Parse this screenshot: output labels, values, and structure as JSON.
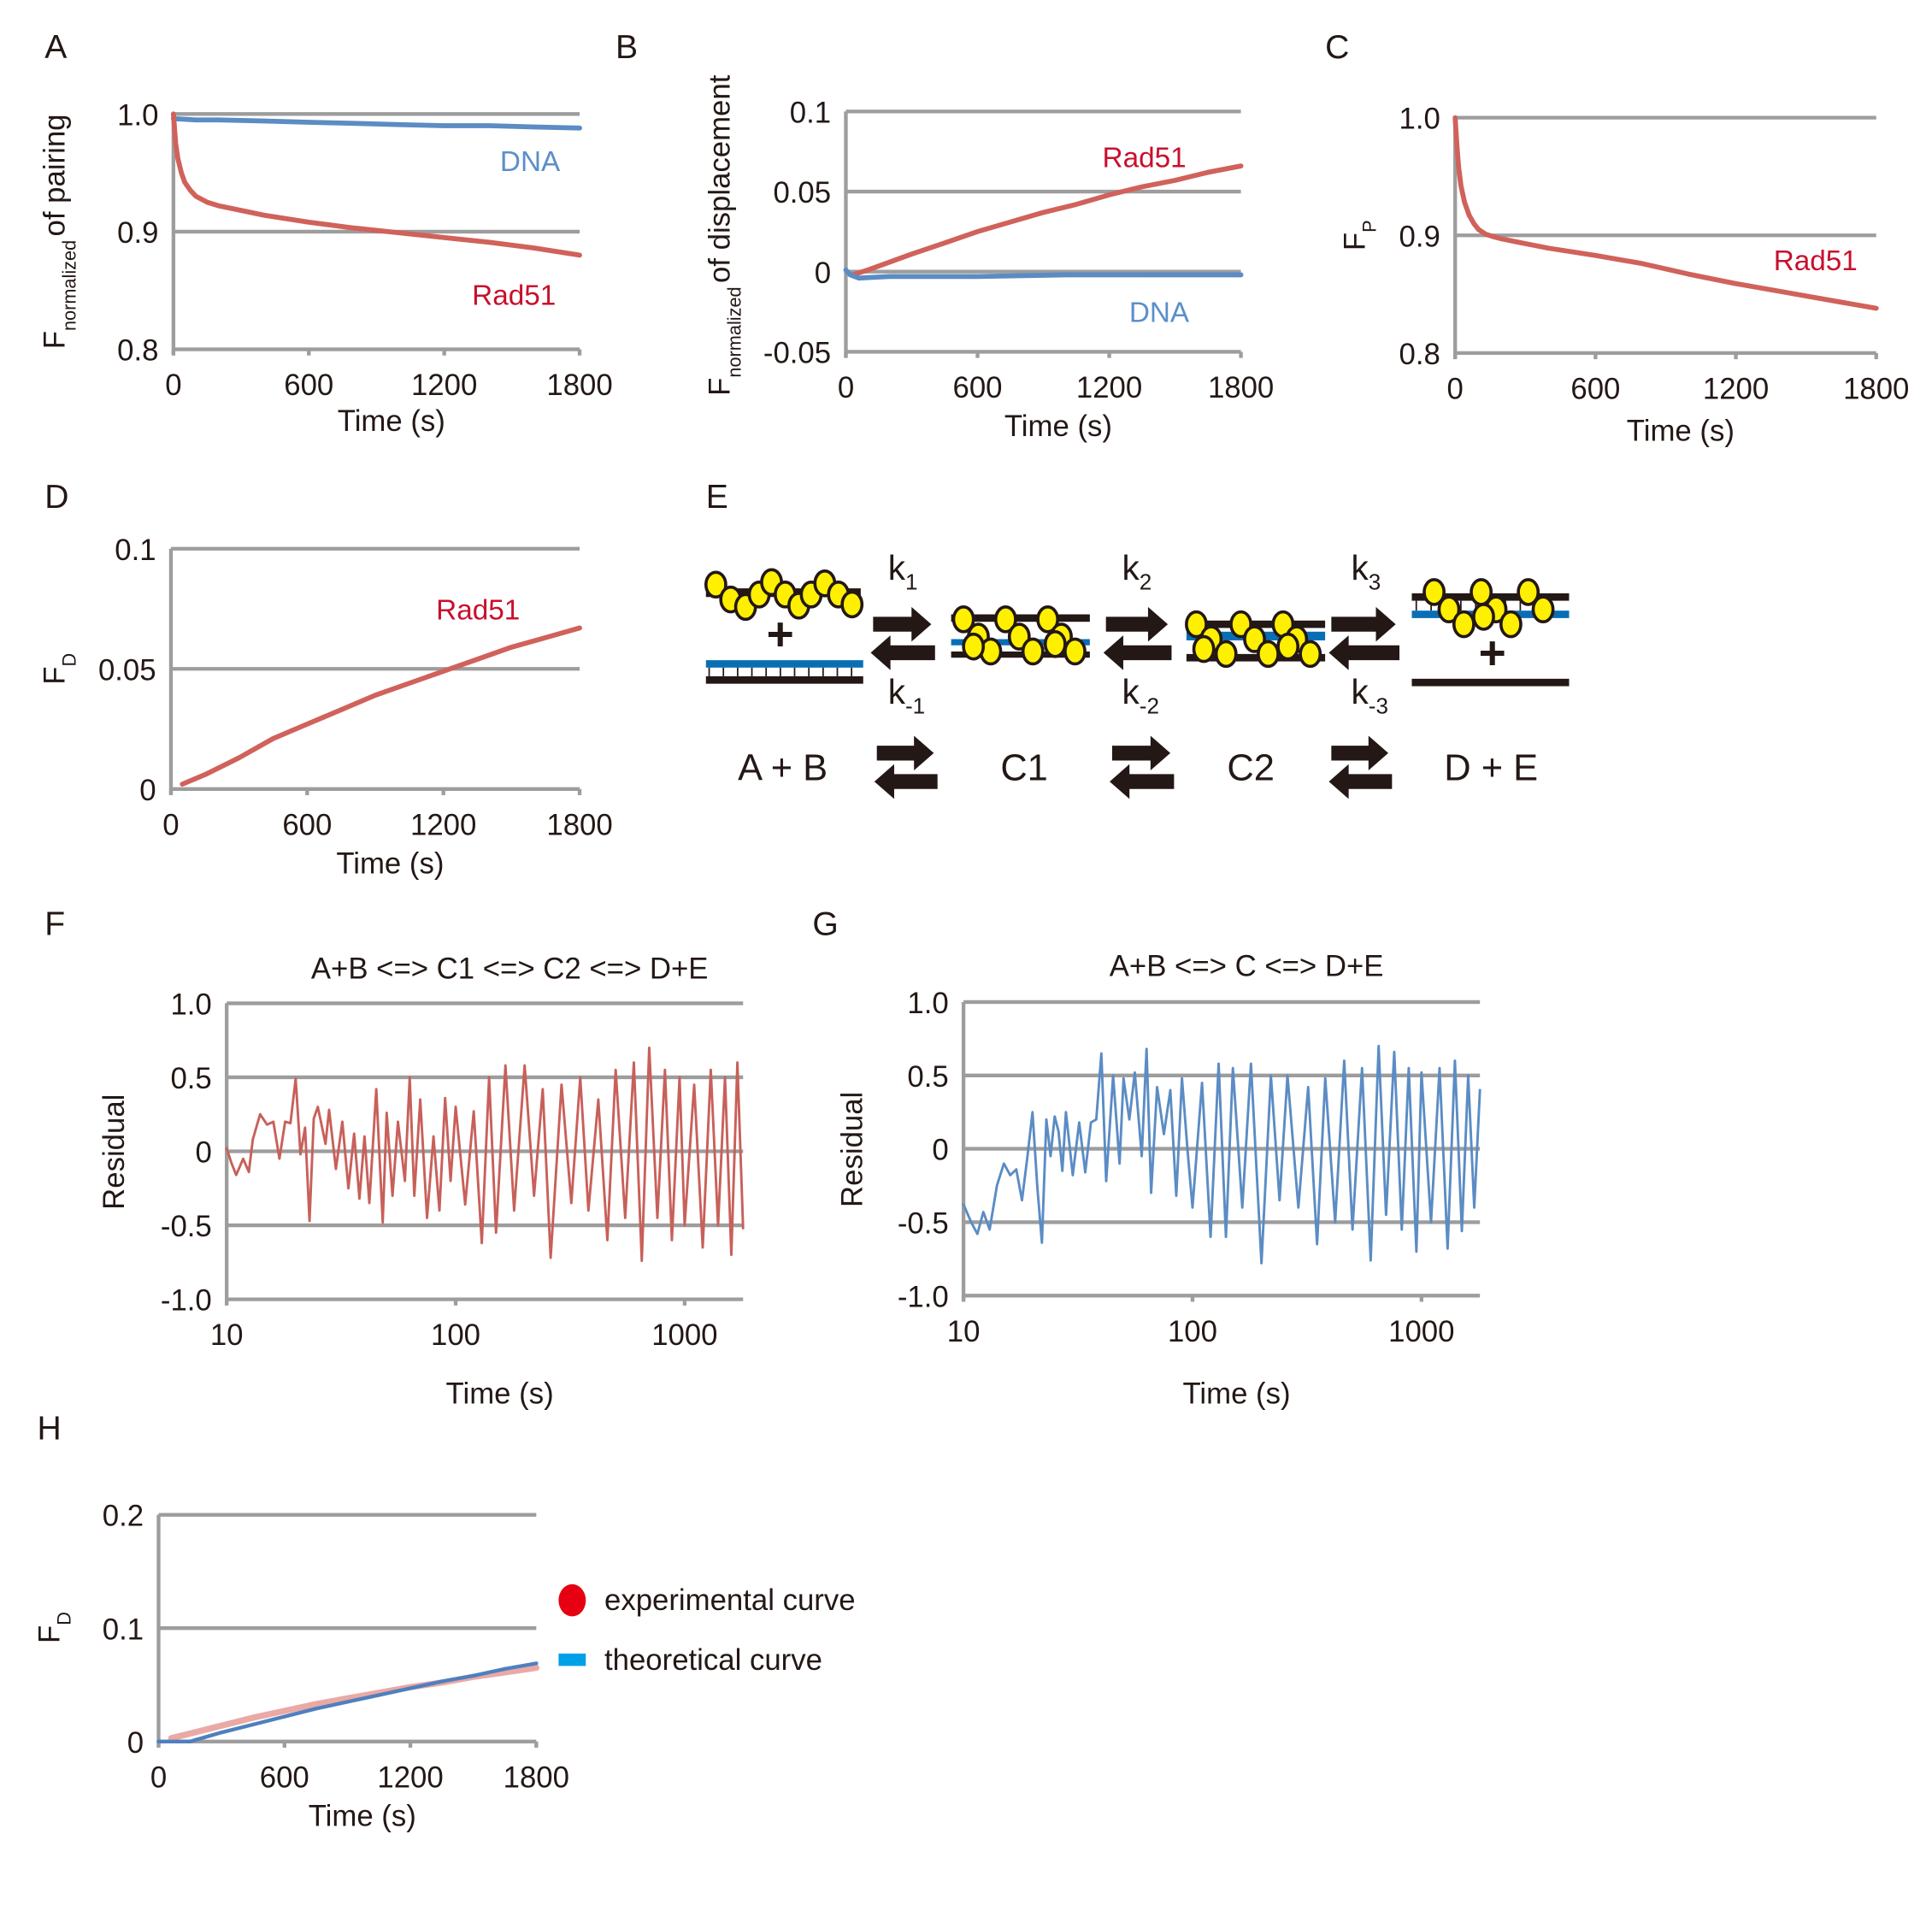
{
  "figure": {
    "panels": [
      "A",
      "B",
      "C",
      "D",
      "E",
      "F",
      "G",
      "H"
    ]
  },
  "colors": {
    "rad51_line": "#d0625b",
    "dna_line": "#5b8cc4",
    "rad51_label": "#c8102e",
    "dna_label": "#5b8fc8",
    "grid": "#9d9d9d",
    "legend_experimental": "#e60012",
    "legend_theoretical": "#00a0e9",
    "theoretical_line": "#4f7fbf",
    "experimental_line": "#eaa9a4",
    "rad51_protein": "#fff000",
    "ssdna_blue": "#0a6eb4",
    "dna_black": "#231815"
  },
  "chart_data": [
    {
      "id": "A",
      "type": "line",
      "title": "",
      "xlabel": "Time (s)",
      "ylabel_main": "F",
      "ylabel_sub": "normalized",
      "ylabel_rest": "of pairing",
      "xlim": [
        0,
        1800
      ],
      "ylim": [
        0.8,
        1.0
      ],
      "xticks": [
        "0",
        "600",
        "1200",
        "1800"
      ],
      "yticks": [
        "0.8",
        "0.9",
        "1.0"
      ],
      "grid": true,
      "series": [
        {
          "name": "DNA",
          "color": "#5b8cc4",
          "x": [
            0,
            100,
            200,
            400,
            600,
            800,
            1000,
            1200,
            1400,
            1600,
            1800
          ],
          "y": [
            0.996,
            0.995,
            0.995,
            0.994,
            0.993,
            0.992,
            0.991,
            0.99,
            0.99,
            0.989,
            0.988
          ]
        },
        {
          "name": "Rad51",
          "color": "#d0625b",
          "x": [
            0,
            10,
            20,
            35,
            50,
            75,
            100,
            150,
            200,
            300,
            400,
            600,
            800,
            1000,
            1200,
            1400,
            1600,
            1800
          ],
          "y": [
            1.0,
            0.975,
            0.962,
            0.95,
            0.942,
            0.935,
            0.93,
            0.925,
            0.922,
            0.918,
            0.914,
            0.908,
            0.903,
            0.899,
            0.895,
            0.891,
            0.886,
            0.88
          ]
        }
      ],
      "annotations": [
        "DNA",
        "Rad51"
      ]
    },
    {
      "id": "B",
      "type": "line",
      "xlabel": "Time (s)",
      "ylabel_main": "F",
      "ylabel_sub": "normalized",
      "ylabel_rest": "of displacement",
      "xlim": [
        0,
        1800
      ],
      "ylim": [
        -0.05,
        0.1
      ],
      "xticks": [
        "0",
        "600",
        "1200",
        "1800"
      ],
      "yticks": [
        "-0.05",
        "0",
        "0.05",
        "0.1"
      ],
      "grid": true,
      "series": [
        {
          "name": "Rad51",
          "color": "#d0625b",
          "x": [
            30,
            100,
            200,
            300,
            450,
            600,
            750,
            900,
            1050,
            1200,
            1350,
            1500,
            1650,
            1800
          ],
          "y": [
            -0.002,
            0.001,
            0.006,
            0.011,
            0.018,
            0.025,
            0.031,
            0.037,
            0.042,
            0.048,
            0.053,
            0.057,
            0.062,
            0.066
          ]
        },
        {
          "name": "DNA",
          "color": "#5b8cc4",
          "x": [
            0,
            20,
            60,
            200,
            600,
            1000,
            1400,
            1800
          ],
          "y": [
            0.001,
            -0.002,
            -0.004,
            -0.003,
            -0.003,
            -0.002,
            -0.002,
            -0.002
          ]
        }
      ],
      "annotations": [
        "Rad51",
        "DNA"
      ]
    },
    {
      "id": "C",
      "type": "line",
      "xlabel": "Time (s)",
      "ylabel_main": "F",
      "ylabel_sub": "P",
      "xlim": [
        0,
        1800
      ],
      "ylim": [
        0.8,
        1.0
      ],
      "xticks": [
        "0",
        "600",
        "1200",
        "1800"
      ],
      "yticks": [
        "0.8",
        "0.9",
        "1.0"
      ],
      "grid": true,
      "series": [
        {
          "name": "Rad51",
          "color": "#d0625b",
          "x": [
            0,
            8,
            15,
            25,
            40,
            60,
            80,
            100,
            130,
            160,
            200,
            300,
            400,
            600,
            800,
            1000,
            1200,
            1400,
            1600,
            1800
          ],
          "y": [
            1.0,
            0.975,
            0.958,
            0.942,
            0.928,
            0.917,
            0.91,
            0.905,
            0.901,
            0.899,
            0.897,
            0.893,
            0.889,
            0.883,
            0.876,
            0.867,
            0.859,
            0.852,
            0.845,
            0.838
          ]
        }
      ],
      "annotations": [
        "Rad51"
      ]
    },
    {
      "id": "D",
      "type": "line",
      "xlabel": "Time (s)",
      "ylabel_main": "F",
      "ylabel_sub": "D",
      "xlim": [
        0,
        1800
      ],
      "ylim": [
        0,
        0.1
      ],
      "xticks": [
        "0",
        "600",
        "1200",
        "1800"
      ],
      "yticks": [
        "0",
        "0.05",
        "0.1"
      ],
      "grid": true,
      "series": [
        {
          "name": "Rad51",
          "color": "#d0625b",
          "x": [
            50,
            150,
            300,
            450,
            600,
            750,
            900,
            1050,
            1200,
            1350,
            1500,
            1650,
            1800
          ],
          "y": [
            0.002,
            0.006,
            0.013,
            0.021,
            0.027,
            0.033,
            0.039,
            0.044,
            0.049,
            0.054,
            0.059,
            0.063,
            0.067
          ]
        }
      ],
      "annotations": [
        "Rad51"
      ]
    },
    {
      "id": "F",
      "type": "line",
      "title": "A+B <=> C1 <=> C2 <=> D+E",
      "xlabel": "Time (s)",
      "ylabel": "Residual",
      "xscale": "log",
      "xlim": [
        10,
        1800
      ],
      "ylim": [
        -1.0,
        1.0
      ],
      "xticks": [
        "10",
        "100",
        "1000"
      ],
      "yticks": [
        "-1.0",
        "-0.5",
        "0",
        "0.5",
        "1.0"
      ],
      "grid": true,
      "series": [
        {
          "name": "residual",
          "color": "#c8605a",
          "x": [
            10,
            10.5,
            11,
            11.8,
            12.5,
            13,
            14,
            15,
            16,
            17,
            18,
            19,
            20,
            21,
            22,
            23,
            24,
            25,
            27,
            28,
            30,
            32,
            34,
            36,
            38,
            40,
            42,
            45,
            48,
            50,
            53,
            56,
            60,
            63,
            66,
            70,
            75,
            80,
            85,
            90,
            95,
            100,
            110,
            120,
            130,
            140,
            150,
            165,
            180,
            200,
            220,
            240,
            260,
            290,
            320,
            350,
            380,
            420,
            460,
            500,
            550,
            600,
            650,
            700,
            760,
            820,
            880,
            950,
            1000,
            1100,
            1200,
            1300,
            1400,
            1500,
            1600,
            1700,
            1800
          ],
          "y": [
            0.02,
            -0.08,
            -0.16,
            -0.05,
            -0.14,
            0.08,
            0.25,
            0.18,
            0.2,
            -0.05,
            0.2,
            0.19,
            0.49,
            -0.02,
            0.16,
            -0.47,
            0.22,
            0.3,
            0.05,
            0.28,
            -0.12,
            0.2,
            -0.25,
            0.12,
            -0.32,
            0.1,
            -0.35,
            0.42,
            -0.48,
            0.26,
            -0.3,
            0.2,
            -0.2,
            0.5,
            -0.3,
            0.35,
            -0.45,
            0.1,
            -0.4,
            0.36,
            -0.2,
            0.3,
            -0.36,
            0.27,
            -0.62,
            0.5,
            -0.55,
            0.58,
            -0.4,
            0.58,
            -0.3,
            0.42,
            -0.72,
            0.45,
            -0.35,
            0.5,
            -0.4,
            0.35,
            -0.6,
            0.55,
            -0.45,
            0.6,
            -0.74,
            0.7,
            -0.45,
            0.55,
            -0.6,
            0.5,
            -0.5,
            0.45,
            -0.65,
            0.55,
            -0.5,
            0.5,
            -0.7,
            0.6,
            -0.52
          ]
        }
      ]
    },
    {
      "id": "G",
      "type": "line",
      "title": "A+B <=> C <=> D+E",
      "xlabel": "Time (s)",
      "ylabel": "Residual",
      "xscale": "log",
      "xlim": [
        10,
        1800
      ],
      "ylim": [
        -1.0,
        1.0
      ],
      "xticks": [
        "10",
        "100",
        "1000"
      ],
      "yticks": [
        "-1.0",
        "-0.5",
        "0",
        "0.5",
        "1.0"
      ],
      "grid": true,
      "series": [
        {
          "name": "residual",
          "color": "#5b8cc4",
          "x": [
            10,
            10.8,
            11.5,
            12.2,
            13,
            14,
            15,
            16,
            17,
            18,
            19,
            20,
            21,
            22,
            23,
            24,
            25,
            26,
            27,
            28,
            30,
            32,
            34,
            36,
            38,
            40,
            42,
            45,
            48,
            50,
            53,
            56,
            60,
            63,
            66,
            70,
            75,
            80,
            85,
            90,
            95,
            100,
            110,
            120,
            130,
            140,
            150,
            165,
            180,
            200,
            220,
            240,
            260,
            290,
            320,
            350,
            380,
            420,
            460,
            500,
            550,
            600,
            650,
            700,
            760,
            820,
            880,
            950,
            1000,
            1100,
            1200,
            1300,
            1400,
            1500,
            1600,
            1700,
            1800
          ],
          "y": [
            -0.38,
            -0.5,
            -0.58,
            -0.43,
            -0.55,
            -0.25,
            -0.1,
            -0.18,
            -0.14,
            -0.35,
            -0.06,
            0.25,
            -0.26,
            -0.64,
            0.2,
            -0.05,
            0.22,
            0.12,
            -0.15,
            0.25,
            -0.18,
            0.18,
            -0.16,
            0.18,
            0.2,
            0.65,
            -0.22,
            0.5,
            -0.1,
            0.48,
            0.2,
            0.52,
            -0.05,
            0.68,
            -0.3,
            0.42,
            0.1,
            0.4,
            -0.32,
            0.48,
            0.0,
            -0.4,
            0.45,
            -0.6,
            0.58,
            -0.6,
            0.55,
            -0.4,
            0.58,
            -0.78,
            0.5,
            -0.35,
            0.5,
            -0.4,
            0.42,
            -0.65,
            0.48,
            -0.5,
            0.6,
            -0.55,
            0.55,
            -0.76,
            0.7,
            -0.45,
            0.66,
            -0.55,
            0.55,
            -0.7,
            0.52,
            -0.5,
            0.55,
            -0.68,
            0.6,
            -0.56,
            0.5,
            -0.4,
            0.4
          ]
        }
      ]
    },
    {
      "id": "H",
      "type": "line",
      "xlabel": "Time (s)",
      "ylabel_main": "F",
      "ylabel_sub": "D",
      "xlim": [
        0,
        1800
      ],
      "ylim": [
        0,
        0.2
      ],
      "xticks": [
        "0",
        "600",
        "1200",
        "1800"
      ],
      "yticks": [
        "0",
        "0.1",
        "0.2"
      ],
      "grid": true,
      "legend": {
        "placement": "right",
        "entries": [
          {
            "label": "experimental curve",
            "color": "#e60012",
            "marker": "circle"
          },
          {
            "label": "theoretical curve",
            "color": "#00a0e9",
            "marker": "bar"
          }
        ]
      },
      "series": [
        {
          "name": "experimental curve",
          "color": "#eaa9a4",
          "x": [
            60,
            150,
            300,
            450,
            600,
            750,
            900,
            1050,
            1200,
            1350,
            1500,
            1650,
            1800
          ],
          "y": [
            0.003,
            0.007,
            0.014,
            0.021,
            0.027,
            0.033,
            0.038,
            0.043,
            0.048,
            0.052,
            0.057,
            0.061,
            0.065
          ]
        },
        {
          "name": "theoretical curve",
          "color": "#4f7fbf",
          "x": [
            0,
            150,
            300,
            450,
            600,
            750,
            900,
            1050,
            1200,
            1350,
            1500,
            1650,
            1800
          ],
          "y": [
            0.0,
            0.0,
            0.008,
            0.015,
            0.022,
            0.029,
            0.035,
            0.041,
            0.047,
            0.053,
            0.058,
            0.064,
            0.069
          ]
        }
      ]
    }
  ],
  "scheme_E": {
    "rate_constants_forward": [
      "1",
      "2",
      "3"
    ],
    "rate_constants_reverse": [
      "-1",
      "-2",
      "-3"
    ],
    "k_symbol": "k",
    "plus": "+",
    "species": [
      "A + B",
      "C1",
      "C2",
      "D + E"
    ]
  }
}
